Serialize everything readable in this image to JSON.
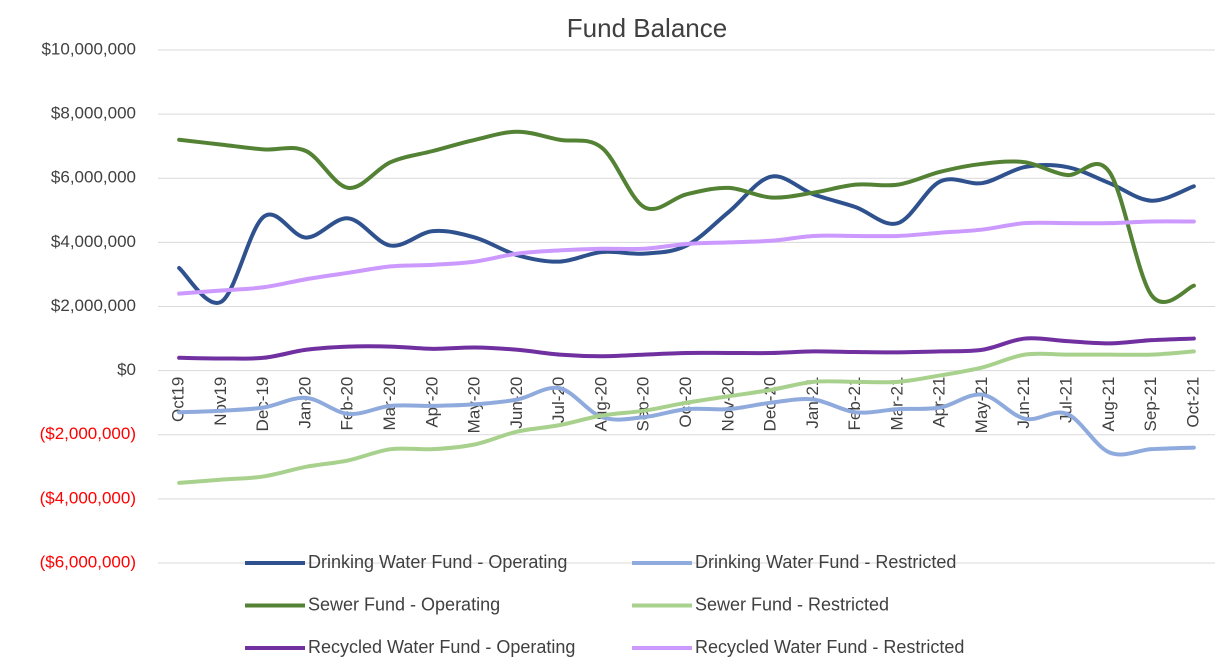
{
  "chart_data": {
    "type": "line",
    "title": "Fund Balance",
    "smooth": true,
    "grid": true,
    "legend": "bottom",
    "negative_tick_color": "#ff0000",
    "categories": [
      "Oct19",
      "Nov19",
      "Dec-19",
      "Jan-20",
      "Feb-20",
      "Mar-20",
      "Apr-20",
      "May-20",
      "Jun-20",
      "Jul-20",
      "Aug-20",
      "Sep-20",
      "Oct-20",
      "Nov-20",
      "Dec-20",
      "Jan-21",
      "Feb-21",
      "Mar-21",
      "Apr-21",
      "May-21",
      "Jun-21",
      "Jul-21",
      "Aug-21",
      "Sep-21",
      "Oct-21"
    ],
    "ylim": [
      -6000000,
      10000000
    ],
    "yticks": [
      {
        "value": 10000000,
        "label": "$10,000,000"
      },
      {
        "value": 8000000,
        "label": "$8,000,000"
      },
      {
        "value": 6000000,
        "label": "$6,000,000"
      },
      {
        "value": 4000000,
        "label": "$4,000,000"
      },
      {
        "value": 2000000,
        "label": "$2,000,000"
      },
      {
        "value": 0,
        "label": "$0"
      },
      {
        "value": -2000000,
        "label": "($2,000,000)"
      },
      {
        "value": -4000000,
        "label": "($4,000,000)"
      },
      {
        "value": -6000000,
        "label": "($6,000,000)"
      }
    ],
    "series": [
      {
        "name": "Drinking Water Fund - Operating",
        "color": "#2f528f",
        "values": [
          3200000,
          2150000,
          4800000,
          4150000,
          4750000,
          3900000,
          4350000,
          4150000,
          3600000,
          3400000,
          3700000,
          3650000,
          3900000,
          4950000,
          6050000,
          5500000,
          5100000,
          4600000,
          5900000,
          5850000,
          6350000,
          6350000,
          5850000,
          5300000,
          5750000
        ]
      },
      {
        "name": "Drinking Water Fund - Restricted",
        "color": "#8faadc",
        "values": [
          -1300000,
          -1250000,
          -1150000,
          -850000,
          -1350000,
          -1100000,
          -1100000,
          -1050000,
          -900000,
          -550000,
          -1450000,
          -1450000,
          -1200000,
          -1200000,
          -1000000,
          -900000,
          -1300000,
          -1200000,
          -1150000,
          -750000,
          -1500000,
          -1350000,
          -2550000,
          -2450000,
          -2400000
        ]
      },
      {
        "name": "Sewer Fund - Operating",
        "color": "#548235",
        "values": [
          7200000,
          7050000,
          6900000,
          6850000,
          5700000,
          6500000,
          6850000,
          7200000,
          7450000,
          7200000,
          6950000,
          5100000,
          5500000,
          5700000,
          5400000,
          5550000,
          5800000,
          5800000,
          6200000,
          6450000,
          6500000,
          6100000,
          6200000,
          2350000,
          2650000
        ]
      },
      {
        "name": "Sewer Fund - Restricted",
        "color": "#a9d18e",
        "values": [
          -3500000,
          -3400000,
          -3300000,
          -3000000,
          -2800000,
          -2450000,
          -2450000,
          -2300000,
          -1900000,
          -1700000,
          -1400000,
          -1250000,
          -1000000,
          -800000,
          -600000,
          -350000,
          -350000,
          -350000,
          -150000,
          100000,
          500000,
          500000,
          500000,
          500000,
          600000
        ]
      },
      {
        "name": "Recycled Water Fund - Operating",
        "color": "#7030a0",
        "values": [
          400000,
          380000,
          400000,
          650000,
          750000,
          750000,
          680000,
          720000,
          650000,
          500000,
          450000,
          500000,
          550000,
          550000,
          550000,
          600000,
          580000,
          570000,
          600000,
          650000,
          1000000,
          920000,
          850000,
          950000,
          1000000
        ]
      },
      {
        "name": "Recycled Water Fund - Restricted",
        "color": "#cc99ff",
        "values": [
          2400000,
          2500000,
          2600000,
          2850000,
          3050000,
          3250000,
          3300000,
          3400000,
          3650000,
          3750000,
          3800000,
          3800000,
          3950000,
          4000000,
          4050000,
          4200000,
          4200000,
          4200000,
          4300000,
          4400000,
          4600000,
          4600000,
          4600000,
          4650000,
          4650000
        ]
      }
    ]
  }
}
